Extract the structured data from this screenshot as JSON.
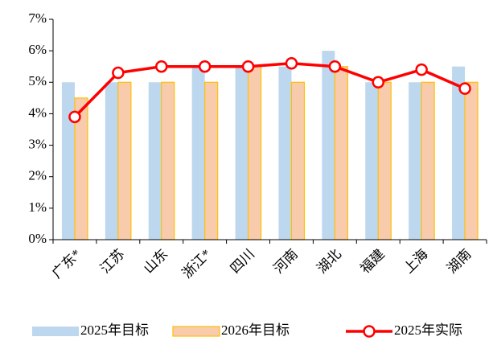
{
  "chart_data": {
    "type": "bar",
    "categories": [
      "广东*",
      "江苏",
      "山东",
      "浙江*",
      "四川",
      "河南",
      "湖北",
      "福建",
      "上海",
      "湖南"
    ],
    "series": [
      {
        "name": "2025年目标",
        "type": "bar",
        "color": "#bdd7ee",
        "values": [
          5,
          5,
          5,
          5.5,
          5.5,
          5.5,
          6,
          5,
          5,
          5.5
        ]
      },
      {
        "name": "2026年目标",
        "type": "bar",
        "color": "#f8cbad",
        "edge_color": "#ffc000",
        "values": [
          4.5,
          5,
          5,
          5,
          5.5,
          5,
          5.5,
          5,
          5,
          5
        ]
      },
      {
        "name": "2025年实际",
        "type": "line",
        "color": "#ff0000",
        "values": [
          3.9,
          5.3,
          5.5,
          5.5,
          5.5,
          5.6,
          5.5,
          5.0,
          5.4,
          4.8
        ]
      }
    ],
    "ylim": [
      0,
      7
    ],
    "yticks": [
      {
        "value": 0,
        "label": "0%"
      },
      {
        "value": 1,
        "label": "1%"
      },
      {
        "value": 2,
        "label": "2%"
      },
      {
        "value": 3,
        "label": "3%"
      },
      {
        "value": 4,
        "label": "4%"
      },
      {
        "value": 5,
        "label": "5%"
      },
      {
        "value": 6,
        "label": "6%"
      },
      {
        "value": 7,
        "label": "7%"
      }
    ],
    "grid": false,
    "legend": "bottom"
  }
}
